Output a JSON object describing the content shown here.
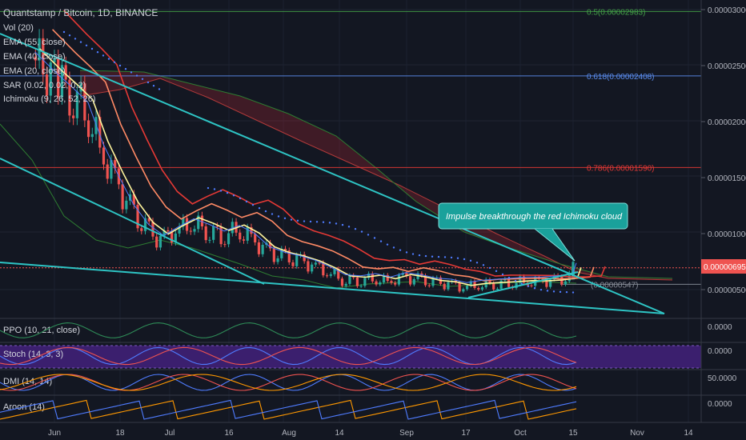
{
  "symbol": "Quantstamp / Bitcoin, 1D, BINANCE",
  "indicators": [
    "Vol (20)",
    "EMA (55, close)",
    "EMA (40, close)",
    "EMA (20, close)",
    "SAR (0.02, 0.02, 0.2)",
    "Ichimoku (9, 26, 52, 26)"
  ],
  "annotation": "Impulse breakthrough the red Ichimoku cloud",
  "colors": {
    "up": "#26a69a",
    "down": "#ef5350",
    "trend": "#2ec4c4",
    "fib": "#5b8def",
    "fib786": "#e53935",
    "fib5": "#43a047",
    "pricebox": "#ef5350",
    "stochbg": "#3b1f6e"
  },
  "chart_data": {
    "type": "line",
    "main_y_ticks": [
      "0.00003000",
      "0.00002500",
      "0.00002000",
      "0.00001500",
      "0.00001000",
      "0.00000500"
    ],
    "last_price": "0.00000695",
    "fib_levels": [
      {
        "label": "0.5(0.00002983)",
        "value": 2.983e-05
      },
      {
        "label": "0.618(0.00002408)",
        "value": 2.408e-05
      },
      {
        "label": "0.786(0.00001590)",
        "value": 1.59e-05
      },
      {
        "label": "(0.00000547)",
        "value": 5.47e-06
      }
    ],
    "x_ticks": [
      "Jun",
      "18",
      "Jul",
      "16",
      "Aug",
      "14",
      "Sep",
      "17",
      "Oct",
      "15",
      "Nov",
      "14"
    ],
    "close_trend": [
      [
        "05-25",
        2.58e-05
      ],
      [
        "05-31",
        2.38e-05
      ],
      [
        "06-04",
        2.26e-05
      ],
      [
        "06-08",
        2.13e-05
      ],
      [
        "06-12",
        1.76e-05
      ],
      [
        "06-16",
        1.48e-05
      ],
      [
        "06-20",
        1.22e-05
      ],
      [
        "06-24",
        1.04e-05
      ],
      [
        "06-28",
        9.4e-06
      ],
      [
        "07-02",
        1.02e-05
      ],
      [
        "07-06",
        1.09e-05
      ],
      [
        "07-10",
        1.04e-05
      ],
      [
        "07-14",
        9.8e-06
      ],
      [
        "07-18",
        1.03e-05
      ],
      [
        "07-22",
        9.6e-06
      ],
      [
        "07-26",
        8.4e-06
      ],
      [
        "07-30",
        7.9e-06
      ],
      [
        "08-03",
        7.6e-06
      ],
      [
        "08-07",
        7.2e-06
      ],
      [
        "08-11",
        6.6e-06
      ],
      [
        "08-15",
        5.9e-06
      ],
      [
        "08-19",
        5.8e-06
      ],
      [
        "08-23",
        6e-06
      ],
      [
        "08-27",
        5.7e-06
      ],
      [
        "08-31",
        6.1e-06
      ],
      [
        "09-04",
        5.9e-06
      ],
      [
        "09-08",
        5.6e-06
      ],
      [
        "09-12",
        5.5e-06
      ],
      [
        "09-16",
        5.2e-06
      ],
      [
        "09-20",
        5.4e-06
      ],
      [
        "09-24",
        5.5e-06
      ],
      [
        "09-28",
        5.6e-06
      ],
      [
        "10-02",
        5.7e-06
      ],
      [
        "10-06",
        5.7e-06
      ],
      [
        "10-10",
        5.8e-06
      ],
      [
        "10-14",
        6e-06
      ],
      [
        "10-15",
        6.95e-06
      ]
    ],
    "panels": [
      {
        "name": "PPO (10, 21, close)",
        "ticks": [
          "0.0000"
        ]
      },
      {
        "name": "Stoch (14, 3, 3)",
        "ticks": [
          "0.0000"
        ]
      },
      {
        "name": "DMI (14, 14)",
        "ticks": [
          "50.0000"
        ]
      },
      {
        "name": "Aroon (14)",
        "ticks": [
          "0.0000"
        ]
      }
    ]
  }
}
